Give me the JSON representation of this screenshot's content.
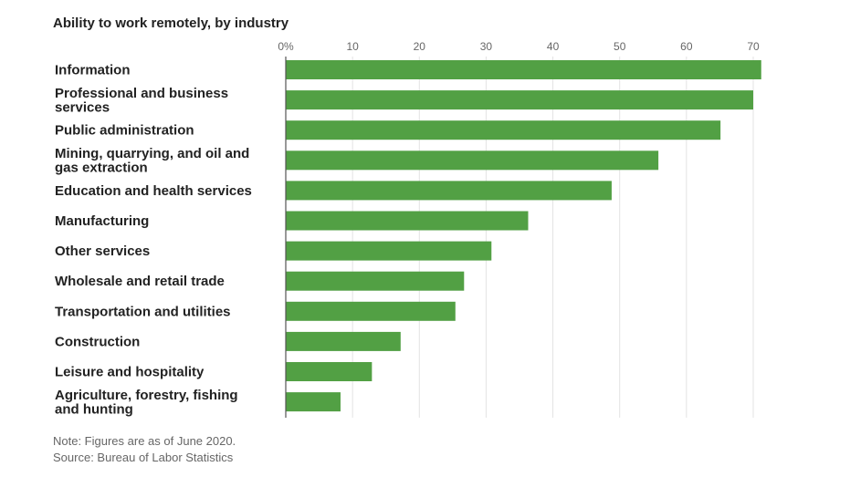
{
  "chart_data": {
    "type": "bar",
    "orientation": "horizontal",
    "title": "Ability to work remotely, by industry",
    "categories": [
      "Information",
      "Professional and business services",
      "Public administration",
      "Mining, quarrying, and oil and gas extraction",
      "Education and health services",
      "Manufacturing",
      "Other services",
      "Wholesale and retail trade",
      "Transportation and utilities",
      "Construction",
      "Leisure and hospitality",
      "Agriculture, forestry, fishing and hunting"
    ],
    "values": [
      71.2,
      70,
      65.1,
      55.8,
      48.8,
      36.3,
      30.8,
      26.7,
      25.4,
      17.2,
      12.9,
      8.2
    ],
    "xlim": [
      0,
      72
    ],
    "ticks": [
      0,
      10,
      20,
      30,
      40,
      50,
      60,
      70
    ],
    "tick_labels": [
      "0%",
      "10",
      "20",
      "30",
      "40",
      "50",
      "60",
      "70"
    ],
    "xlabel": "",
    "ylabel": "",
    "grid": true,
    "bar_color": "#52a044"
  },
  "notes": {
    "note": "Note: Figures are as of June 2020.",
    "source": "Source: Bureau of Labor Statistics"
  }
}
